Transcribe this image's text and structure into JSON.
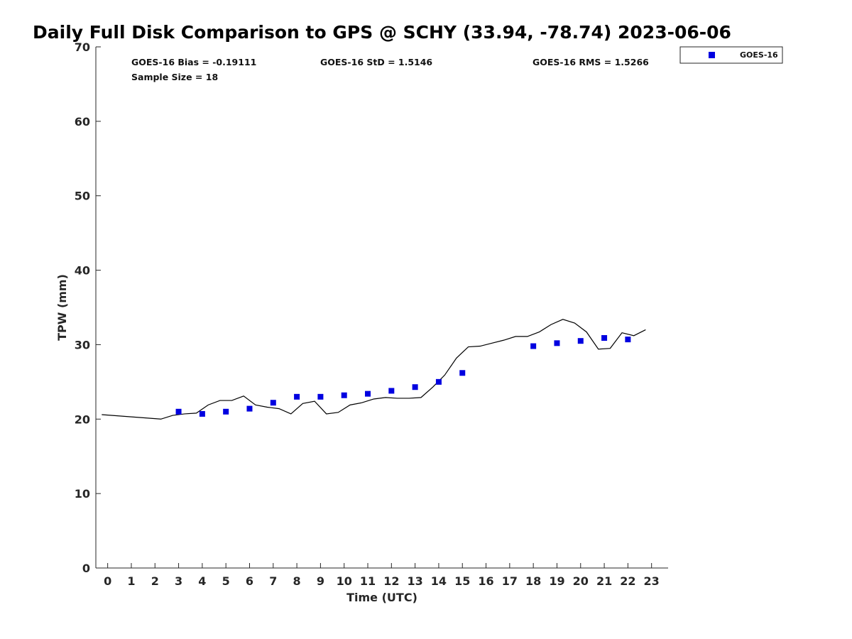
{
  "chart_data": {
    "type": "scatter",
    "title": "Daily Full Disk Comparison to GPS @ SCHY (33.94, -78.74) 2023-06-06",
    "xlabel": "Time (UTC)",
    "ylabel": "TPW (mm)",
    "xlim": [
      -0.5,
      23.7
    ],
    "ylim": [
      0,
      70
    ],
    "x_ticks": [
      0,
      1,
      2,
      3,
      4,
      5,
      6,
      7,
      8,
      9,
      10,
      11,
      12,
      13,
      14,
      15,
      16,
      17,
      18,
      19,
      20,
      21,
      22,
      23
    ],
    "y_ticks": [
      0,
      10,
      20,
      30,
      40,
      50,
      60,
      70
    ],
    "grid": false,
    "legend_position": "outside top-right",
    "stats": {
      "bias": "GOES-16 Bias = -0.19111",
      "std": "GOES-16 StD = 1.5146",
      "rms": "GOES-16 RMS = 1.5266",
      "sample_size": "Sample Size = 18"
    },
    "series": [
      {
        "name": "GOES-16",
        "style": "markers",
        "color": "#0000e0",
        "x": [
          3,
          4,
          5,
          6,
          7,
          8,
          9,
          10,
          11,
          12,
          13,
          14,
          15,
          18,
          19,
          20,
          21,
          22
        ],
        "y": [
          21.0,
          20.7,
          21.0,
          21.4,
          22.2,
          23.0,
          23.0,
          23.2,
          23.4,
          23.8,
          24.3,
          25.0,
          26.2,
          29.8,
          30.2,
          30.5,
          30.9,
          30.7
        ]
      },
      {
        "style": "line",
        "color": "#000000",
        "x": [
          -0.25,
          2.25,
          2.75,
          3.25,
          3.75,
          4.25,
          4.75,
          5.25,
          5.75,
          6.25,
          6.75,
          7.25,
          7.75,
          8.25,
          8.75,
          9.25,
          9.75,
          10.25,
          10.75,
          11.25,
          11.75,
          12.25,
          12.75,
          13.25,
          13.75,
          14.25,
          14.75,
          15.25,
          15.75,
          16.25,
          16.75,
          17.25,
          17.75,
          18.25,
          18.75,
          19.25,
          19.75,
          20.25,
          20.75,
          21.25,
          21.75,
          22.25,
          22.75
        ],
        "y": [
          20.6,
          20.0,
          20.5,
          20.7,
          20.8,
          21.9,
          22.5,
          22.5,
          23.1,
          21.9,
          21.6,
          21.4,
          20.7,
          22.1,
          22.4,
          20.7,
          20.9,
          21.9,
          22.2,
          22.7,
          22.9,
          22.8,
          22.8,
          22.9,
          24.3,
          25.9,
          28.2,
          29.7,
          29.8,
          30.2,
          30.6,
          31.1,
          31.1,
          31.7,
          32.7,
          33.4,
          32.9,
          31.7,
          29.4,
          29.5,
          31.6,
          31.2,
          32.0
        ]
      }
    ]
  }
}
